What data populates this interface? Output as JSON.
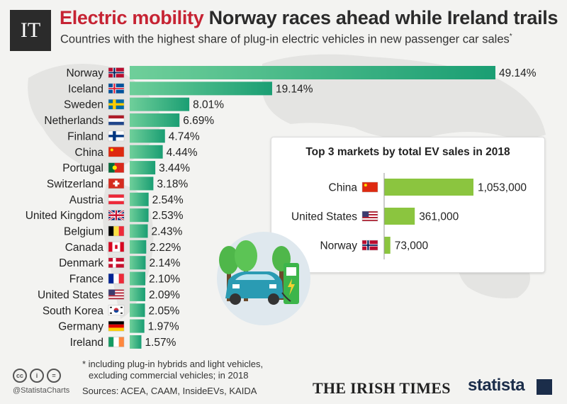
{
  "header": {
    "logo_text": "IT",
    "title_accent": "Electric mobility",
    "title_rest": "Norway races ahead while Ireland trails",
    "subtitle": "Countries with the highest share of plug-in electric vehicles in new passenger car sales",
    "subtitle_mark": "*"
  },
  "chart_data": [
    {
      "type": "bar",
      "orientation": "horizontal",
      "title": "",
      "categories": [
        "Norway",
        "Iceland",
        "Sweden",
        "Netherlands",
        "Finland",
        "China",
        "Portugal",
        "Switzerland",
        "Austria",
        "United Kingdom",
        "Belgium",
        "Canada",
        "Denmark",
        "France",
        "United States",
        "South Korea",
        "Germany",
        "Ireland"
      ],
      "values": [
        49.14,
        19.14,
        8.01,
        6.69,
        4.74,
        4.44,
        3.44,
        3.18,
        2.54,
        2.53,
        2.43,
        2.22,
        2.14,
        2.1,
        2.09,
        2.05,
        1.97,
        1.57
      ],
      "value_labels": [
        "49.14%",
        "19.14%",
        "8.01%",
        "6.69%",
        "4.74%",
        "4.44%",
        "3.44%",
        "3.18%",
        "2.54%",
        "2.53%",
        "2.43%",
        "2.22%",
        "2.14%",
        "2.10%",
        "2.09%",
        "2.05%",
        "1.97%",
        "1.57%"
      ],
      "unit": "%",
      "xlim": [
        0,
        50
      ],
      "bar_color_start": "#6fcf9a",
      "bar_color_end": "#1a9e73"
    },
    {
      "type": "bar",
      "orientation": "horizontal",
      "title": "Top 3 markets by total EV sales in 2018",
      "categories": [
        "China",
        "United States",
        "Norway"
      ],
      "values": [
        1053000,
        361000,
        73000
      ],
      "value_labels": [
        "1,053,000",
        "361,000",
        "73,000"
      ],
      "xlim": [
        0,
        1053000
      ],
      "bar_color": "#8bc53f"
    }
  ],
  "flags": {
    "Norway": "norway-flag-icon",
    "Iceland": "iceland-flag-icon",
    "Sweden": "sweden-flag-icon",
    "Netherlands": "netherlands-flag-icon",
    "Finland": "finland-flag-icon",
    "China": "china-flag-icon",
    "Portugal": "portugal-flag-icon",
    "Switzerland": "switzerland-flag-icon",
    "Austria": "austria-flag-icon",
    "United Kingdom": "united-kingdom-flag-icon",
    "Belgium": "belgium-flag-icon",
    "Canada": "canada-flag-icon",
    "Denmark": "denmark-flag-icon",
    "France": "france-flag-icon",
    "United States": "united-states-flag-icon",
    "South Korea": "south-korea-flag-icon",
    "Germany": "germany-flag-icon",
    "Ireland": "ireland-flag-icon"
  },
  "footer": {
    "footnote_line1": "* including plug-in hybrids and light vehicles,",
    "footnote_line2": "excluding commercial vehicles; in 2018",
    "sources": "Sources: ACEA, CAAM, InsideEVs, KAIDA",
    "handle": "@StatistaCharts",
    "publisher": "THE IRISH TIMES",
    "brand": "statista",
    "cc_labels": [
      "cc",
      "i",
      "="
    ]
  }
}
